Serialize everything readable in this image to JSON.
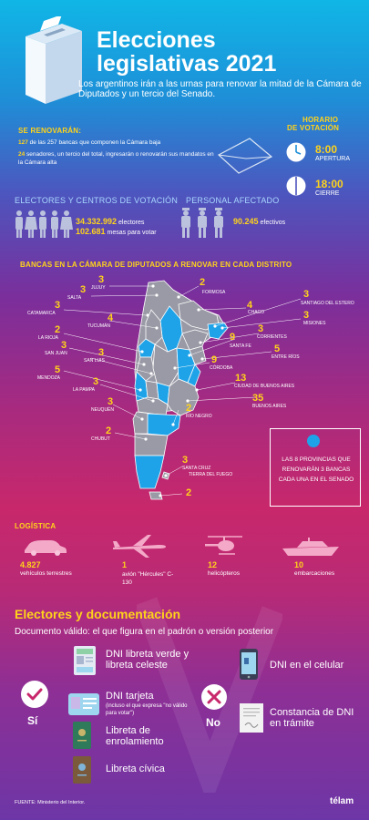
{
  "header": {
    "title_line1": "Elecciones",
    "title_line2": "legislativas 2021",
    "subtitle": "Los argentinos irán a las urnas para renovar la mitad de la Cámara de Diputados y un tercio del Senado."
  },
  "renovaran": {
    "heading": "SE RENOVARÁN:",
    "line1_num": "127",
    "line1_text": " de las 257 bancas que componen la Cámara baja",
    "line2_num": "24",
    "line2_text": " senadores, un tercio del total, ingresarán o renovarán sus mandatos en la Cámara alta"
  },
  "horario": {
    "heading_line1": "HORARIO",
    "heading_line2": "DE VOTACIÓN",
    "open_time": "8:00",
    "open_label": "APERTURA",
    "close_time": "18:00",
    "close_label": "CIERRE"
  },
  "electores": {
    "heading": "ELECTORES Y CENTROS DE VOTACIÓN",
    "voters_num": "34.332.992",
    "voters_label": "electores",
    "tables_num": "102.681",
    "tables_label": "mesas para votar"
  },
  "personal": {
    "heading": "PERSONAL AFECTADO",
    "num": "90.245",
    "label": "efectivos"
  },
  "bancas": {
    "heading": "BANCAS EN LA CÁMARA DE DIPUTADOS A RENOVAR EN CADA DISTRITO",
    "provinces": [
      {
        "n": "3",
        "name": "JUJUY"
      },
      {
        "n": "3",
        "name": "SALTA"
      },
      {
        "n": "3",
        "name": "CATAMARCA"
      },
      {
        "n": "4",
        "name": "TUCUMÁN"
      },
      {
        "n": "2",
        "name": "LA RIOJA"
      },
      {
        "n": "3",
        "name": "SAN JUAN"
      },
      {
        "n": "3",
        "name": "SAN LUIS"
      },
      {
        "n": "5",
        "name": "MENDOZA"
      },
      {
        "n": "3",
        "name": "LA PAMPA"
      },
      {
        "n": "3",
        "name": "NEUQUÉN"
      },
      {
        "n": "2",
        "name": "CHUBUT"
      },
      {
        "n": "2",
        "name": "FORMOSA"
      },
      {
        "n": "4",
        "name": "CHACO"
      },
      {
        "n": "3",
        "name": "SANTIAGO DEL ESTERO"
      },
      {
        "n": "3",
        "name": "MISIONES"
      },
      {
        "n": "3",
        "name": "CORRIENTES"
      },
      {
        "n": "9",
        "name": "SANTA FE"
      },
      {
        "n": "5",
        "name": "ENTRE RÍOS"
      },
      {
        "n": "9",
        "name": "CÓRDOBA"
      },
      {
        "n": "13",
        "name": "CIUDAD DE BUENOS AIRES"
      },
      {
        "n": "35",
        "name": "BUENOS AIRES"
      },
      {
        "n": "2",
        "name": "RÍO NEGRO"
      },
      {
        "n": "3",
        "name": "SANTA CRUZ"
      },
      {
        "n": "",
        "name": "TIERRA DEL FUEGO"
      },
      {
        "n": "2",
        "name": ""
      }
    ],
    "legend": "LAS 8 PROVINCIAS QUE RENOVARÁN 3 BANCAS CADA UNA EN EL SENADO",
    "legend_color": "#1ea3e8"
  },
  "logistica": {
    "heading": "LOGÍSTICA",
    "items": [
      {
        "num": "4.827",
        "label": "vehículos terrestres",
        "icon": "car-icon"
      },
      {
        "num": "1",
        "label": "avión \"Hércules\" C-130",
        "icon": "plane-icon"
      },
      {
        "num": "12",
        "label": "helicópteros",
        "icon": "helicopter-icon"
      },
      {
        "num": "10",
        "label": "embarcaciones",
        "icon": "boat-icon"
      }
    ]
  },
  "documentacion": {
    "heading": "Electores y documentación",
    "subheading": "Documento válido: el que figura en el padrón o versión posterior",
    "yes_label": "Sí",
    "no_label": "No",
    "valid": [
      {
        "label": "DNI libreta verde y libreta celeste",
        "note": ""
      },
      {
        "label": "DNI tarjeta",
        "note": "(incluso el que expresa \"no válido para votar\")"
      },
      {
        "label": "Libreta de enrolamiento",
        "note": ""
      },
      {
        "label": "Libreta cívica",
        "note": ""
      }
    ],
    "invalid": [
      {
        "label": "DNI en el celular"
      },
      {
        "label": "Constancia de DNI en trámite"
      }
    ]
  },
  "footer": {
    "source_label": "FUENTE:",
    "source_value": "Ministerio del Interior.",
    "brand": "télam"
  }
}
